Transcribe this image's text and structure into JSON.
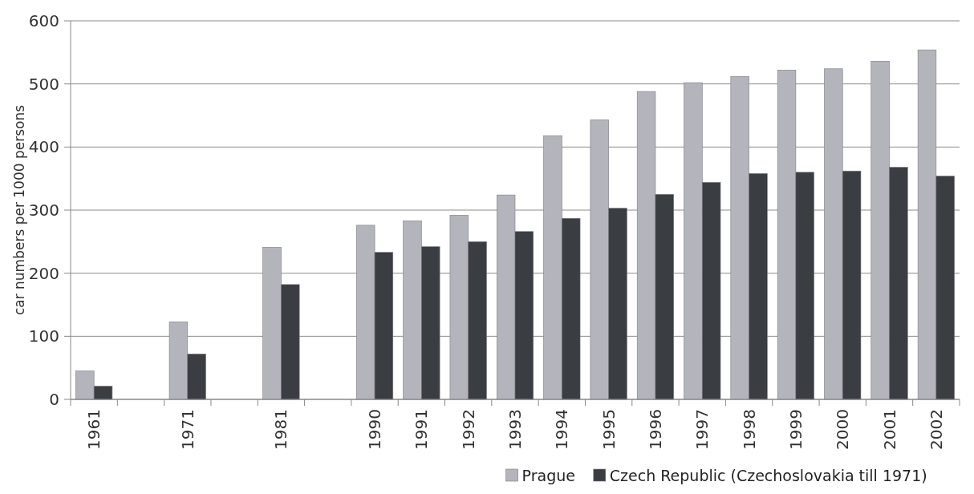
{
  "chart_data": {
    "type": "bar",
    "ylabel": "car numbers per 1000 persons",
    "categories": [
      "1961",
      null,
      "1971",
      null,
      "1981",
      null,
      "1990",
      "1991",
      "1992",
      "1993",
      "1994",
      "1995",
      "1996",
      "1997",
      "1998",
      "1999",
      "2000",
      "2001",
      "2002"
    ],
    "series": [
      {
        "name": "Prague",
        "color": "#b4b5bc",
        "values": [
          45,
          null,
          123,
          null,
          241,
          null,
          276,
          283,
          292,
          324,
          418,
          443,
          488,
          502,
          512,
          522,
          524,
          536,
          554
        ]
      },
      {
        "name": "Czech Republic (Czechoslovakia till 1971)",
        "color": "#3a3d42",
        "values": [
          21,
          null,
          72,
          null,
          182,
          null,
          233,
          242,
          250,
          266,
          287,
          303,
          325,
          344,
          358,
          360,
          362,
          368,
          354
        ]
      }
    ],
    "ylim": [
      0,
      600
    ],
    "yticks": [
      0,
      100,
      200,
      300,
      400,
      500,
      600
    ],
    "grid": "y",
    "legend": "bottom right"
  }
}
